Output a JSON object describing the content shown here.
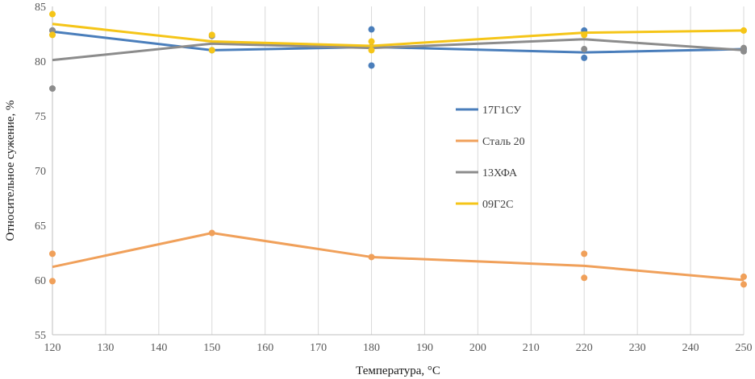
{
  "chart_data": {
    "type": "line",
    "title": "",
    "xlabel": "Температура, °C",
    "ylabel": "Относительное сужение, %",
    "xlim": [
      120,
      250
    ],
    "ylim": [
      55,
      85
    ],
    "x_ticks": [
      "120",
      "130",
      "140",
      "150",
      "160",
      "170",
      "180",
      "190",
      "200",
      "210",
      "220",
      "230",
      "240",
      "250"
    ],
    "y_ticks": [
      "55",
      "60",
      "65",
      "70",
      "75",
      "80",
      "85"
    ],
    "grid": "vertical",
    "legend_position": "center-right",
    "series": [
      {
        "name": "17Г1СУ",
        "color": "#4a7ebb",
        "line": [
          [
            120,
            82.7
          ],
          [
            150,
            81.0
          ],
          [
            180,
            81.3
          ],
          [
            220,
            80.8
          ],
          [
            250,
            81.1
          ]
        ],
        "points": [
          [
            120,
            82.8
          ],
          [
            150,
            81.0
          ],
          [
            180,
            82.9
          ],
          [
            180,
            79.6
          ],
          [
            220,
            82.8
          ],
          [
            220,
            80.3
          ],
          [
            250,
            81.1
          ]
        ]
      },
      {
        "name": "Сталь 20",
        "color": "#f0a05a",
        "line": [
          [
            120,
            61.2
          ],
          [
            150,
            64.3
          ],
          [
            180,
            62.1
          ],
          [
            220,
            61.3
          ],
          [
            250,
            60.0
          ]
        ],
        "points": [
          [
            120,
            62.4
          ],
          [
            120,
            59.9
          ],
          [
            150,
            64.3
          ],
          [
            180,
            62.1
          ],
          [
            220,
            62.4
          ],
          [
            220,
            60.2
          ],
          [
            250,
            60.3
          ],
          [
            250,
            59.6
          ]
        ]
      },
      {
        "name": "13ХФА",
        "color": "#8c8c8c",
        "line": [
          [
            120,
            80.1
          ],
          [
            150,
            81.6
          ],
          [
            180,
            81.2
          ],
          [
            220,
            82.0
          ],
          [
            250,
            81.0
          ]
        ],
        "points": [
          [
            120,
            82.8
          ],
          [
            120,
            77.5
          ],
          [
            150,
            82.3
          ],
          [
            180,
            81.3
          ],
          [
            220,
            81.1
          ],
          [
            250,
            81.2
          ],
          [
            250,
            80.9
          ]
        ]
      },
      {
        "name": "09Г2С",
        "color": "#f5c518",
        "line": [
          [
            120,
            83.4
          ],
          [
            150,
            81.8
          ],
          [
            180,
            81.4
          ],
          [
            220,
            82.6
          ],
          [
            250,
            82.8
          ]
        ],
        "points": [
          [
            120,
            84.3
          ],
          [
            120,
            82.4
          ],
          [
            150,
            82.4
          ],
          [
            150,
            81.0
          ],
          [
            180,
            81.8
          ],
          [
            180,
            81.0
          ],
          [
            220,
            82.4
          ],
          [
            250,
            82.8
          ]
        ]
      }
    ]
  }
}
